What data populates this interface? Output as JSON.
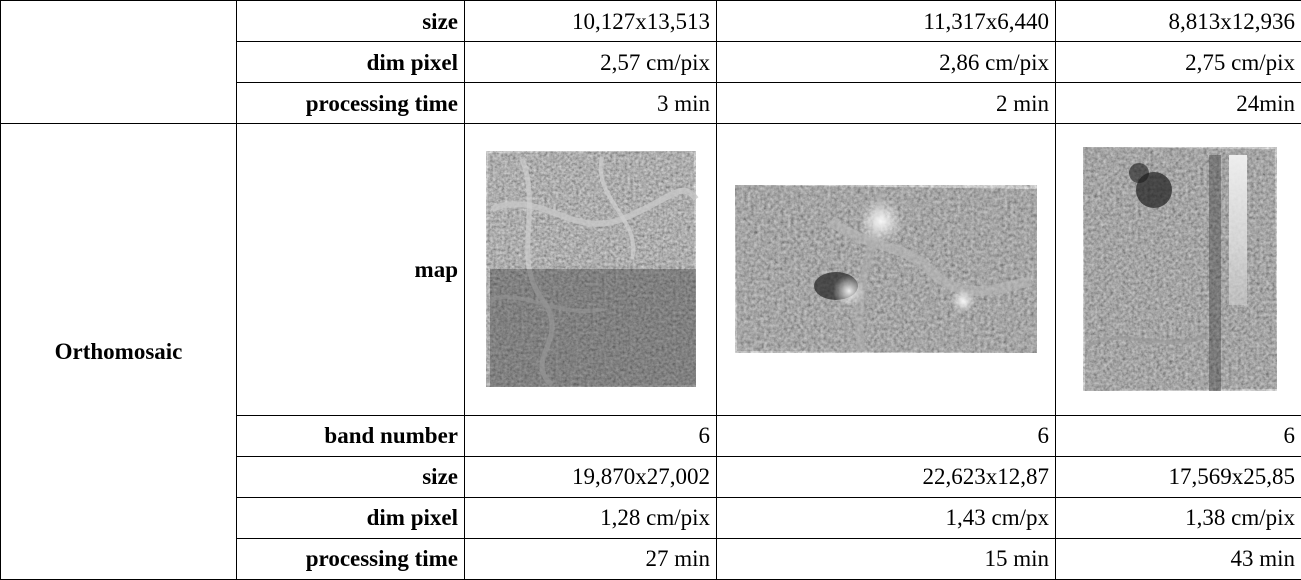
{
  "top_block": {
    "rows": [
      {
        "label": "size",
        "values": [
          "10,127x13,513",
          "11,317x6,440",
          "8,813x12,936"
        ]
      },
      {
        "label": "dim pixel",
        "values": [
          "2,57 cm/pix",
          "2,86 cm/pix",
          "2,75 cm/pix"
        ]
      },
      {
        "label": "processing time",
        "values": [
          "3 min",
          "2 min",
          "24min"
        ]
      }
    ]
  },
  "orthomosaic": {
    "section_label": "Orthomosaic",
    "map_label": "map",
    "maps": [
      {
        "name": "orthomosaic-map-1",
        "shape": "portrait",
        "tone": "mottled gray forest with light paths"
      },
      {
        "name": "orthomosaic-map-2",
        "shape": "landscape",
        "tone": "gray forest with bright clearing"
      },
      {
        "name": "orthomosaic-map-3",
        "shape": "portrait",
        "tone": "dark gray forest with bright strip"
      }
    ],
    "rows": [
      {
        "label": "band number",
        "values": [
          "6",
          "6",
          "6"
        ]
      },
      {
        "label": "size",
        "values": [
          "19,870x27,002",
          "22,623x12,87",
          "17,569x25,85"
        ]
      },
      {
        "label": "dim pixel",
        "values": [
          "1,28 cm/pix",
          "1,43 cm/px",
          "1,38 cm/pix"
        ]
      },
      {
        "label": "processing time",
        "values": [
          "27 min",
          "15 min",
          "43 min"
        ]
      }
    ]
  }
}
